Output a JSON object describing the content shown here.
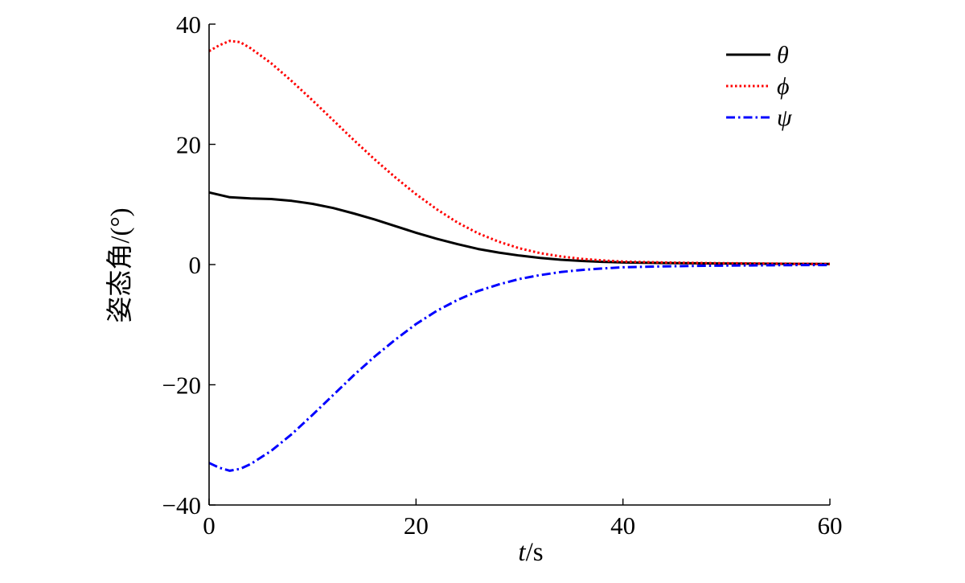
{
  "chart_data": {
    "type": "line",
    "xlabel": "t/s",
    "xlabel_var": "t",
    "xlabel_unit": "/s",
    "ylabel": "姿态角/(°)",
    "xlim": [
      0,
      60
    ],
    "ylim": [
      -40,
      40
    ],
    "xticks": [
      0,
      20,
      40,
      60
    ],
    "yticks": [
      -40,
      -20,
      0,
      20,
      40
    ],
    "xtick_labels": [
      "0",
      "20",
      "40",
      "60"
    ],
    "ytick_labels": [
      "−40",
      "−20",
      "0",
      "20",
      "40"
    ],
    "grid": false,
    "legend_position": "top-right",
    "series": [
      {
        "name": "θ",
        "color": "#000000",
        "style": "solid",
        "x": [
          0,
          2,
          4,
          6,
          8,
          10,
          12,
          14,
          16,
          18,
          20,
          22,
          24,
          26,
          28,
          30,
          32,
          34,
          36,
          38,
          40,
          44,
          48,
          52,
          56,
          60
        ],
        "y": [
          12.0,
          11.2,
          11.0,
          10.9,
          10.6,
          10.1,
          9.4,
          8.5,
          7.5,
          6.4,
          5.3,
          4.3,
          3.4,
          2.6,
          2.0,
          1.5,
          1.1,
          0.8,
          0.6,
          0.45,
          0.35,
          0.25,
          0.2,
          0.15,
          0.12,
          0.1
        ]
      },
      {
        "name": "ϕ",
        "color": "#ff0000",
        "style": "dotted",
        "x": [
          0,
          1,
          2,
          3,
          4,
          6,
          8,
          10,
          12,
          14,
          16,
          18,
          20,
          22,
          24,
          26,
          28,
          30,
          32,
          34,
          36,
          38,
          40,
          44,
          48,
          52,
          56,
          60
        ],
        "y": [
          35.5,
          36.5,
          37.2,
          37.0,
          36.0,
          33.5,
          30.5,
          27.3,
          24.0,
          20.7,
          17.5,
          14.5,
          11.7,
          9.2,
          7.0,
          5.2,
          3.8,
          2.7,
          1.9,
          1.35,
          0.95,
          0.7,
          0.5,
          0.35,
          0.25,
          0.2,
          0.15,
          0.1
        ]
      },
      {
        "name": "ψ",
        "color": "#0000ff",
        "style": "dashdot",
        "x": [
          0,
          1,
          2,
          3,
          4,
          6,
          8,
          10,
          12,
          14,
          16,
          18,
          20,
          22,
          24,
          26,
          28,
          30,
          32,
          34,
          36,
          38,
          40,
          44,
          48,
          52,
          56,
          60
        ],
        "y": [
          -33.0,
          -33.8,
          -34.3,
          -34.0,
          -33.2,
          -31.0,
          -28.2,
          -25.0,
          -21.7,
          -18.4,
          -15.3,
          -12.5,
          -9.9,
          -7.7,
          -5.9,
          -4.4,
          -3.3,
          -2.4,
          -1.75,
          -1.25,
          -0.9,
          -0.65,
          -0.45,
          -0.3,
          -0.2,
          -0.15,
          -0.1,
          -0.08
        ]
      }
    ]
  }
}
